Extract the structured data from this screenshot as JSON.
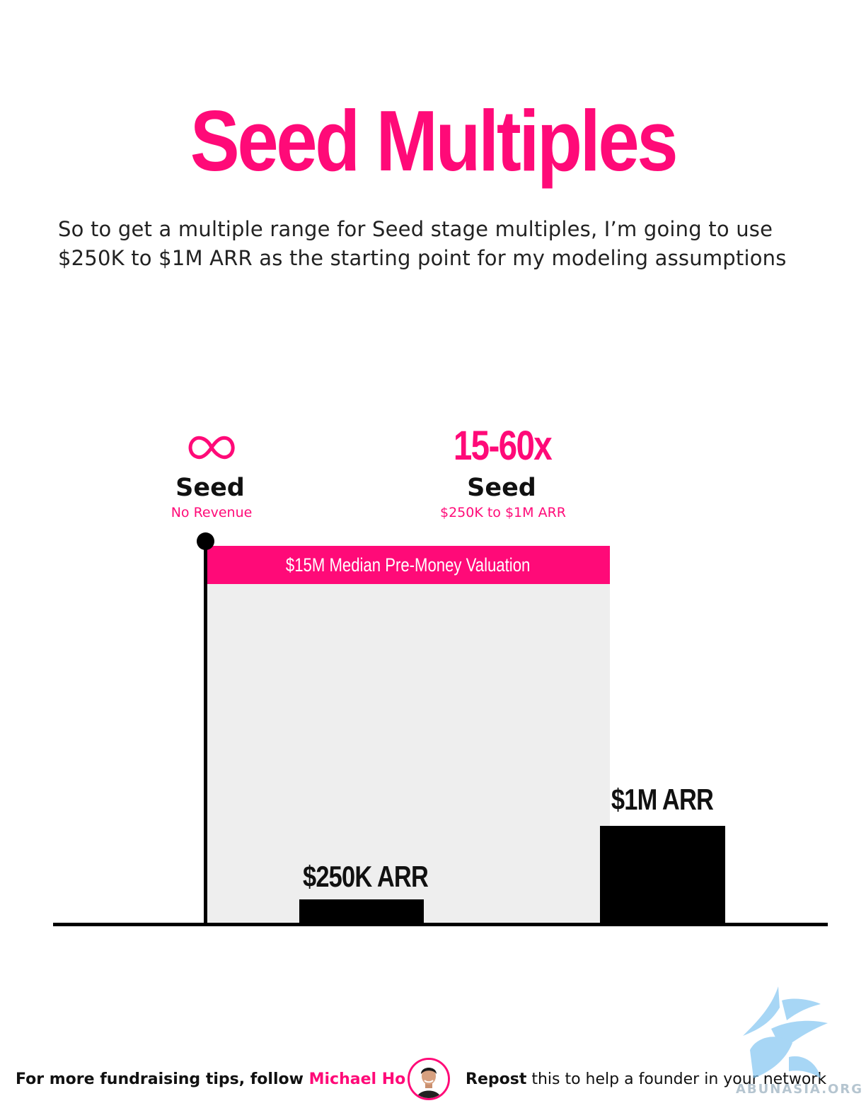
{
  "title": "Seed Multiples",
  "subtitle": "So to get a multiple range for Seed stage multiples, I’m going to use $250K to $1M ARR as the starting point for my modeling assumptions",
  "stages": [
    {
      "multiple_icon": "infinity-icon",
      "name": "Seed",
      "note": "No Revenue"
    },
    {
      "multiple": "15-60x",
      "name": "Seed",
      "note": "$250K to $1M ARR"
    }
  ],
  "valuation_band": {
    "label": "$15M Median Pre-Money Valuation",
    "color": "#ff0a78"
  },
  "bars": [
    {
      "label": "$250K ARR",
      "value_k": 250
    },
    {
      "label": "$1M ARR",
      "value_k": 1000
    }
  ],
  "colors": {
    "accent": "#ff0a78",
    "bar": "#000000",
    "area": "#eeeeee"
  },
  "footer": {
    "follow_prefix": "For more fundraising tips, follow ",
    "follow_name": "Michael Ho",
    "repost_bold": "Repost",
    "repost_rest": " this to help a founder in your network"
  },
  "watermark": "ABUNASIA.ORG"
}
